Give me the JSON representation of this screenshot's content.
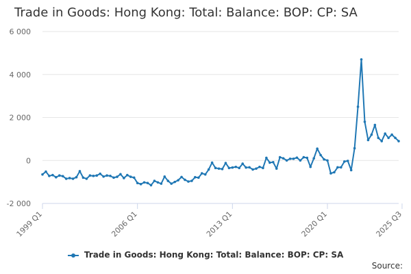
{
  "chart_data": {
    "type": "line",
    "title": "Trade in Goods: Hong Kong: Total: Balance: BOP: CP: SA",
    "xlabel": "",
    "ylabel": "",
    "ylim": [
      -2000,
      6000
    ],
    "yticks": [
      -2000,
      0,
      2000,
      4000,
      6000
    ],
    "ytick_labels": [
      "-2 000",
      "0",
      "2 000",
      "4 000",
      "6 000"
    ],
    "xticks": [
      {
        "index": 0,
        "label": "1999 Q1"
      },
      {
        "index": 28,
        "label": "2006 Q1"
      },
      {
        "index": 56,
        "label": "2013 Q1"
      },
      {
        "index": 84,
        "label": "2020 Q1"
      },
      {
        "index": 106,
        "label": "2025 Q3"
      }
    ],
    "grid": true,
    "legend_position": "bottom",
    "color": "#1f77b4",
    "series": [
      {
        "name": "Trade in Goods: Hong Kong: Total: Balance: BOP: CP: SA",
        "values": [
          -650,
          -520,
          -720,
          -680,
          -780,
          -700,
          -730,
          -850,
          -820,
          -850,
          -780,
          -500,
          -800,
          -850,
          -700,
          -720,
          -700,
          -620,
          -750,
          -700,
          -720,
          -800,
          -760,
          -640,
          -820,
          -680,
          -760,
          -800,
          -1050,
          -1100,
          -1020,
          -1050,
          -1150,
          -950,
          -1020,
          -1080,
          -750,
          -950,
          -1080,
          -1000,
          -920,
          -770,
          -900,
          -980,
          -950,
          -780,
          -800,
          -600,
          -650,
          -420,
          -100,
          -350,
          -380,
          -400,
          -120,
          -350,
          -330,
          -300,
          -350,
          -150,
          -330,
          -320,
          -420,
          -380,
          -300,
          -350,
          120,
          -100,
          -80,
          -380,
          150,
          100,
          0,
          80,
          80,
          130,
          0,
          150,
          120,
          -300,
          100,
          550,
          250,
          50,
          0,
          -600,
          -550,
          -320,
          -320,
          -50,
          -20,
          -450,
          570,
          2500,
          4700,
          1800,
          950,
          1200,
          1650,
          1050,
          900,
          1250,
          1050,
          1200,
          1050,
          900
        ]
      }
    ]
  },
  "legend": {
    "label": "Trade in Goods: Hong Kong: Total: Balance: BOP: CP: SA",
    "color": "#1f77b4"
  },
  "source_label": "Source:"
}
